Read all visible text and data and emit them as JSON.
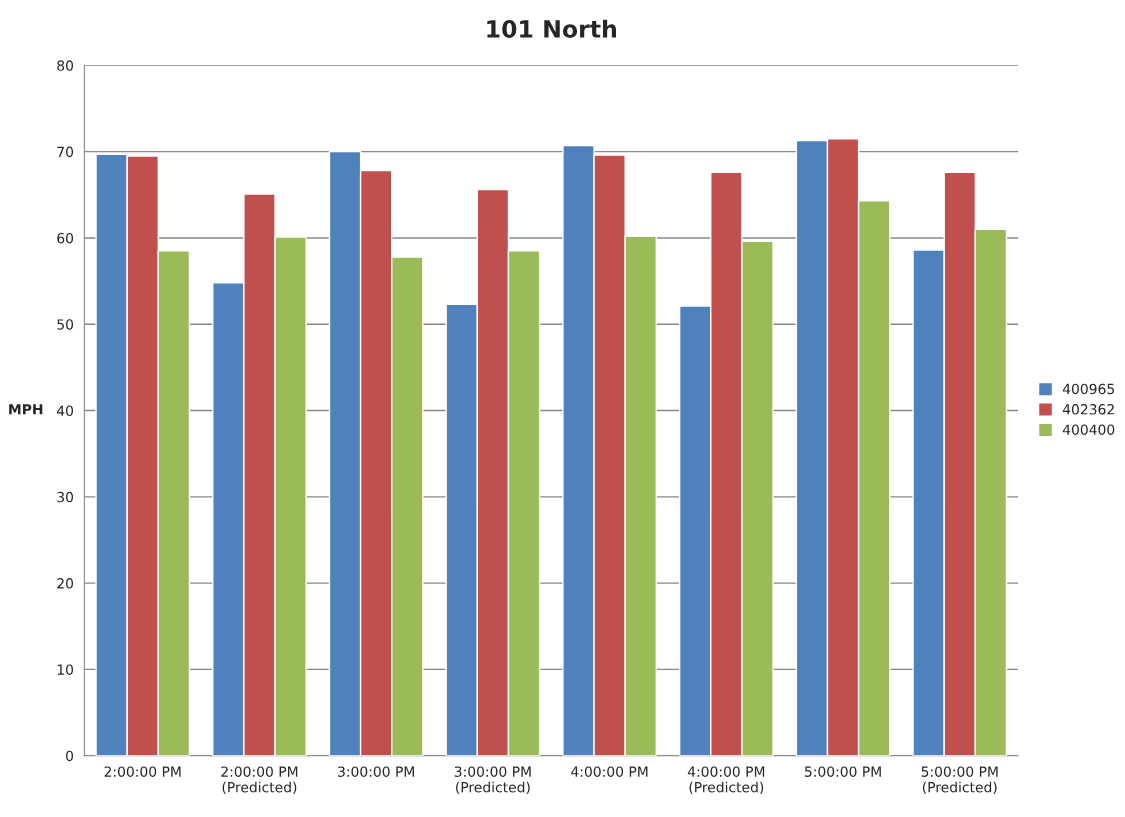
{
  "chart_data": {
    "type": "bar",
    "title": "101 North",
    "ylabel": "MPH",
    "categories": [
      "2:00:00 PM",
      "2:00:00 PM\n(Predicted)",
      "3:00:00 PM",
      "3:00:00 PM\n(Predicted)",
      "4:00:00 PM",
      "4:00:00 PM\n(Predicted)",
      "5:00:00 PM",
      "5:00:00 PM\n(Predicted)"
    ],
    "series": [
      {
        "name": "400965",
        "color": "#4f81bd",
        "values": [
          69.7,
          54.8,
          70.0,
          52.3,
          70.7,
          52.1,
          71.3,
          58.6
        ]
      },
      {
        "name": "402362",
        "color": "#c0504d",
        "values": [
          69.5,
          65.1,
          67.8,
          65.6,
          69.6,
          67.6,
          71.5,
          67.6
        ]
      },
      {
        "name": "400400",
        "color": "#9bbb59",
        "values": [
          58.5,
          60.1,
          57.8,
          58.5,
          60.2,
          59.6,
          64.3,
          61.0
        ]
      }
    ],
    "ylim": [
      0,
      80
    ],
    "yticks": [
      0,
      10,
      20,
      30,
      40,
      50,
      60,
      70,
      80
    ],
    "grid": "y",
    "legend": "right"
  }
}
